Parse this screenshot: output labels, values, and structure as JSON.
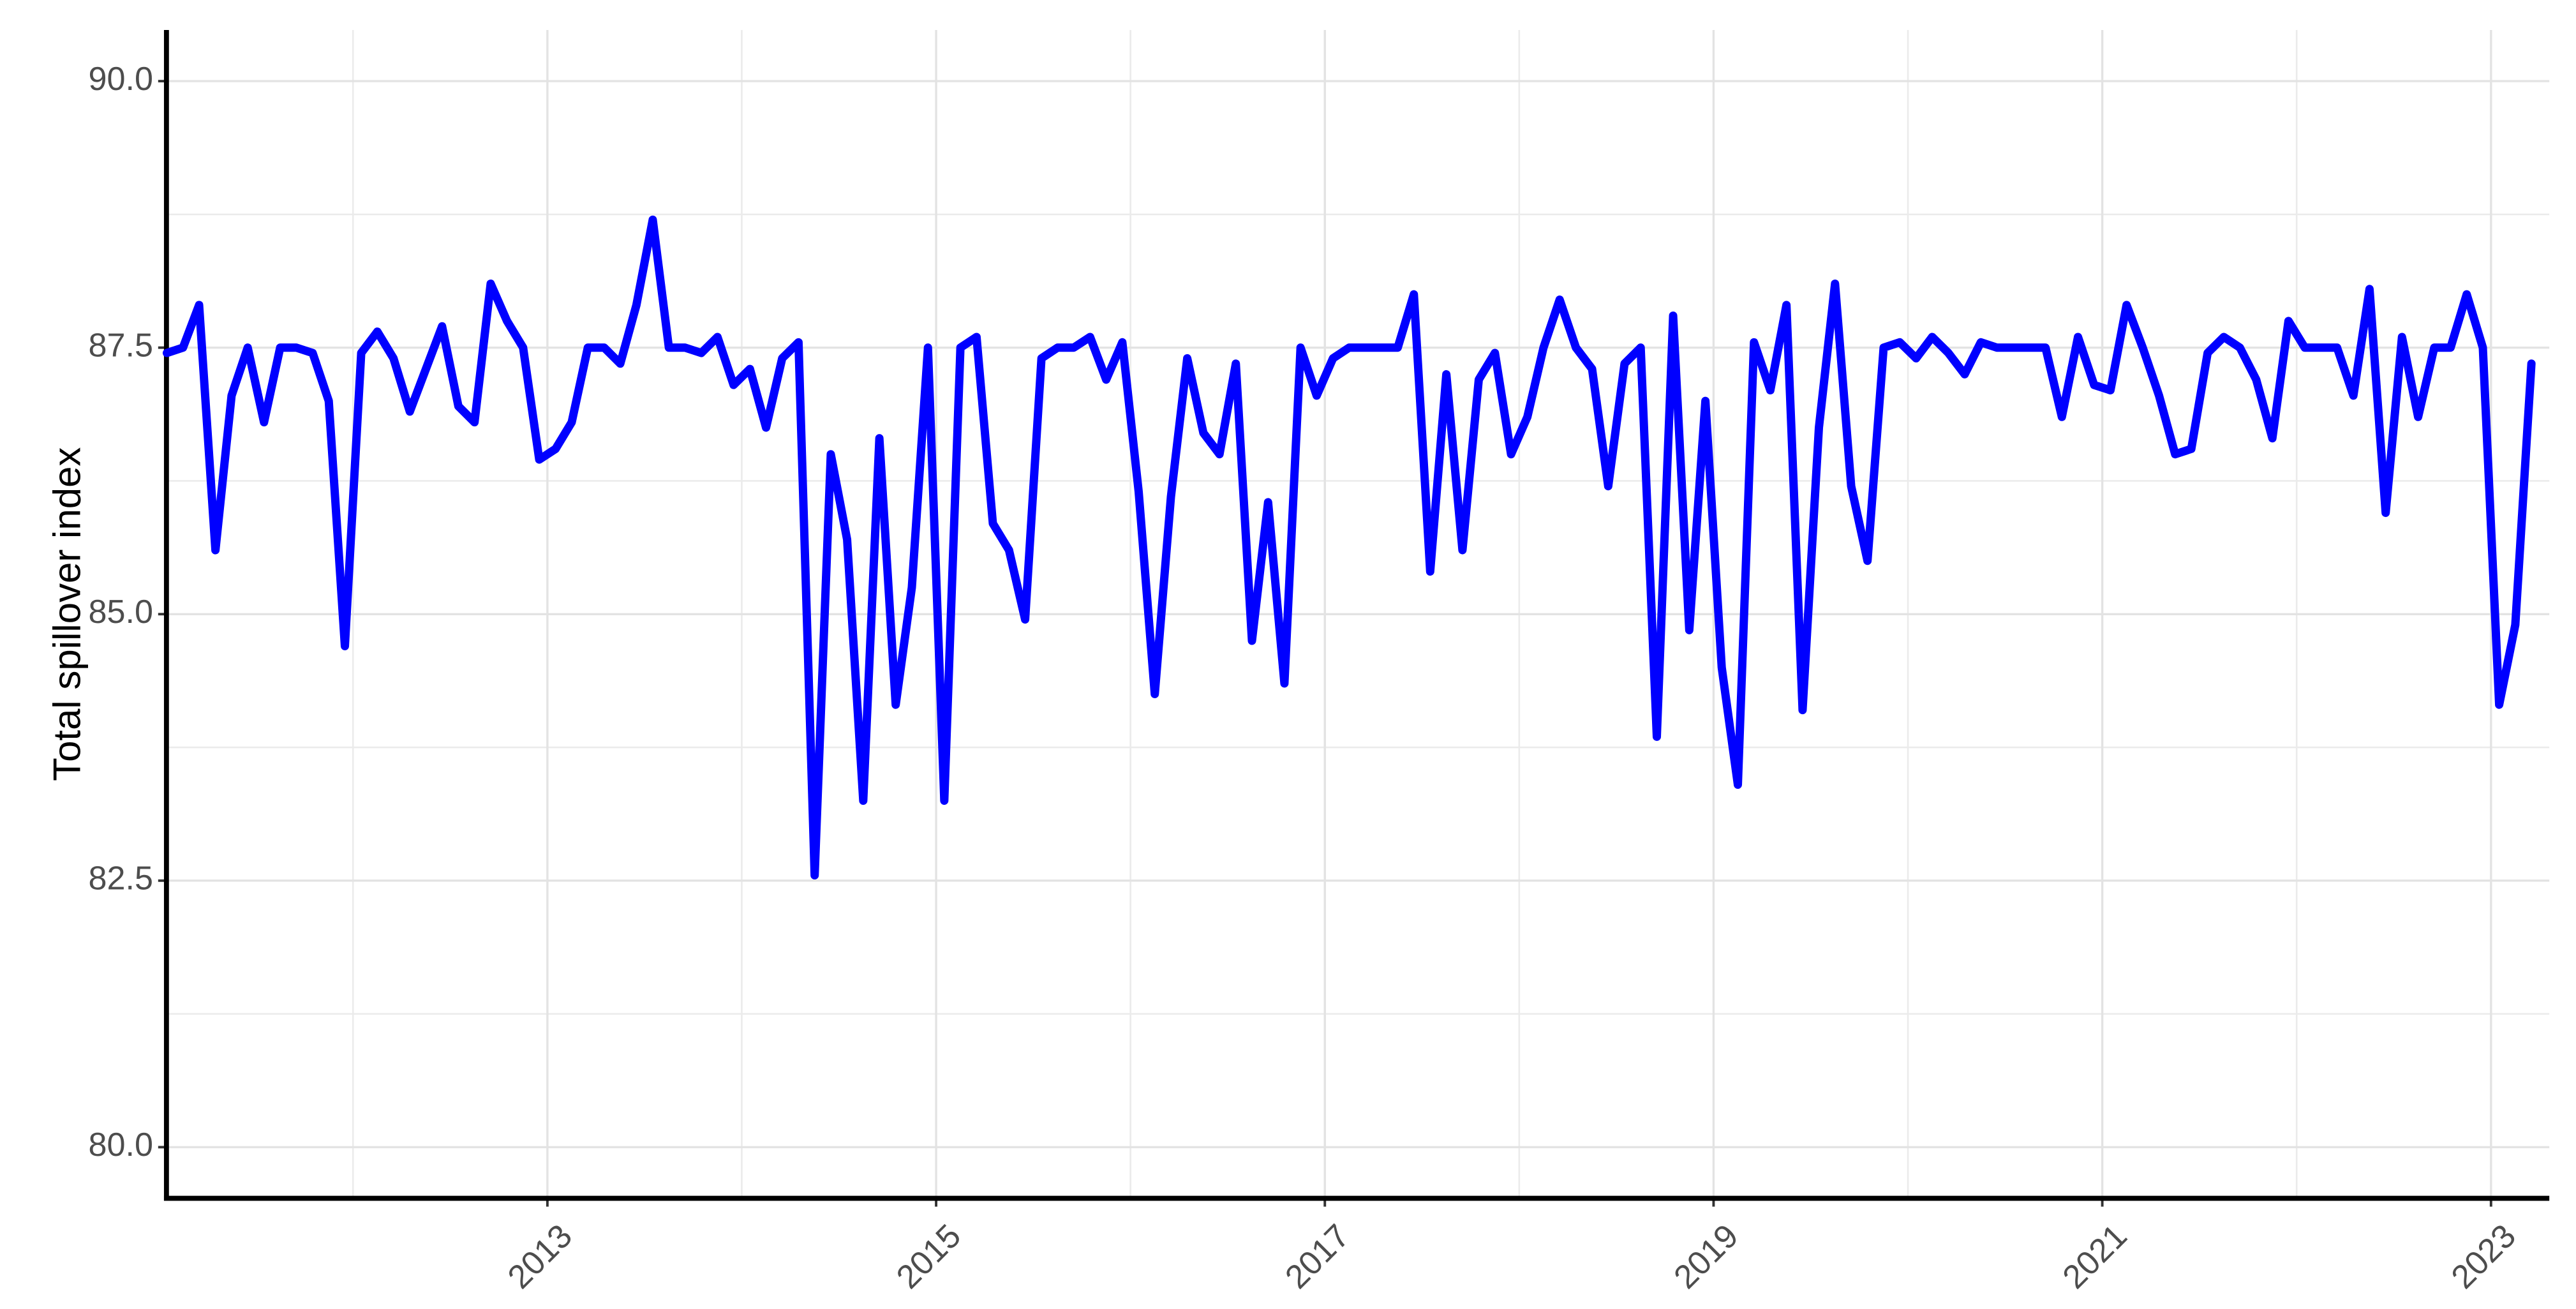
{
  "chart_data": {
    "type": "line",
    "y_label": "Total spillover index",
    "color": "#0000ff",
    "grid": true,
    "xlim": [
      2011.04,
      2023.3
    ],
    "ylim": [
      79.52,
      90.48
    ],
    "xticks": [
      2013,
      2015,
      2017,
      2019,
      2021,
      2023
    ],
    "x_minor_ticks": [
      2012,
      2014,
      2016,
      2018,
      2020,
      2022
    ],
    "yticks": [
      {
        "value": 80,
        "label": "80.0"
      },
      82.5,
      {
        "value": 85,
        "label": "85.0"
      },
      87.5,
      {
        "value": 90,
        "label": "90.0"
      }
    ],
    "y_minor_ticks": [
      81.25,
      83.75,
      86.25,
      88.75
    ],
    "x": [
      2011.042,
      2011.125,
      2011.208,
      2011.292,
      2011.375,
      2011.458,
      2011.542,
      2011.625,
      2011.708,
      2011.792,
      2011.875,
      2011.958,
      2012.042,
      2012.125,
      2012.208,
      2012.292,
      2012.375,
      2012.458,
      2012.542,
      2012.625,
      2012.708,
      2012.792,
      2012.875,
      2012.958,
      2013.042,
      2013.125,
      2013.208,
      2013.292,
      2013.375,
      2013.458,
      2013.542,
      2013.625,
      2013.708,
      2013.792,
      2013.875,
      2013.958,
      2014.042,
      2014.125,
      2014.208,
      2014.292,
      2014.375,
      2014.458,
      2014.542,
      2014.625,
      2014.708,
      2014.792,
      2014.875,
      2014.958,
      2015.042,
      2015.125,
      2015.208,
      2015.292,
      2015.375,
      2015.458,
      2015.542,
      2015.625,
      2015.708,
      2015.792,
      2015.875,
      2015.958,
      2016.042,
      2016.125,
      2016.208,
      2016.292,
      2016.375,
      2016.458,
      2016.542,
      2016.625,
      2016.708,
      2016.792,
      2016.875,
      2016.958,
      2017.042,
      2017.125,
      2017.208,
      2017.292,
      2017.375,
      2017.458,
      2017.542,
      2017.625,
      2017.708,
      2017.792,
      2017.875,
      2017.958,
      2018.042,
      2018.125,
      2018.208,
      2018.292,
      2018.375,
      2018.458,
      2018.542,
      2018.625,
      2018.708,
      2018.792,
      2018.875,
      2018.958,
      2019.042,
      2019.125,
      2019.208,
      2019.292,
      2019.375,
      2019.458,
      2019.542,
      2019.625,
      2019.708,
      2019.792,
      2019.875,
      2019.958,
      2020.042,
      2020.125,
      2020.208,
      2020.292,
      2020.375,
      2020.458,
      2020.542,
      2020.625,
      2020.708,
      2020.792,
      2020.875,
      2020.958,
      2021.042,
      2021.125,
      2021.208,
      2021.292,
      2021.375,
      2021.458,
      2021.542,
      2021.625,
      2021.708,
      2021.792,
      2021.875,
      2021.958,
      2022.042,
      2022.125,
      2022.208,
      2022.292,
      2022.375,
      2022.458,
      2022.542,
      2022.625,
      2022.708,
      2022.792,
      2022.875,
      2022.958,
      2023.042,
      2023.125,
      2023.208
    ],
    "values": [
      87.45,
      87.5,
      87.9,
      85.6,
      87.05,
      87.5,
      86.8,
      87.5,
      87.5,
      87.45,
      87.0,
      84.7,
      87.45,
      87.65,
      87.4,
      86.9,
      87.3,
      87.7,
      86.95,
      86.8,
      88.1,
      87.75,
      87.5,
      86.45,
      86.55,
      86.8,
      87.5,
      87.5,
      87.35,
      87.9,
      88.7,
      87.5,
      87.5,
      87.45,
      87.6,
      87.15,
      87.3,
      86.75,
      87.4,
      87.55,
      82.55,
      86.5,
      85.7,
      83.25,
      86.65,
      84.15,
      85.25,
      87.5,
      83.25,
      87.5,
      87.6,
      85.85,
      85.6,
      84.95,
      87.4,
      87.5,
      87.5,
      87.6,
      87.2,
      87.55,
      86.15,
      84.25,
      86.1,
      87.4,
      86.7,
      86.5,
      87.35,
      84.75,
      86.05,
      84.35,
      87.5,
      87.05,
      87.4,
      87.5,
      87.5,
      87.5,
      87.5,
      88.0,
      85.4,
      87.25,
      85.6,
      87.2,
      87.45,
      86.5,
      86.85,
      87.5,
      87.95,
      87.5,
      87.3,
      86.2,
      87.35,
      87.5,
      83.85,
      87.8,
      84.85,
      87.0,
      84.5,
      83.4,
      87.55,
      87.1,
      87.9,
      84.1,
      86.75,
      88.1,
      86.2,
      85.5,
      87.5,
      87.55,
      87.4,
      87.6,
      87.45,
      87.25,
      87.55,
      87.5,
      87.5,
      87.5,
      87.5,
      86.85,
      87.6,
      87.15,
      87.1,
      87.9,
      87.5,
      87.05,
      86.5,
      86.55,
      87.45,
      87.6,
      87.5,
      87.2,
      86.65,
      87.75,
      87.5,
      87.5,
      87.5,
      87.05,
      88.05,
      85.95,
      87.6,
      86.85,
      87.5,
      87.5,
      88.0,
      87.5,
      84.15,
      84.9,
      87.35
    ]
  }
}
